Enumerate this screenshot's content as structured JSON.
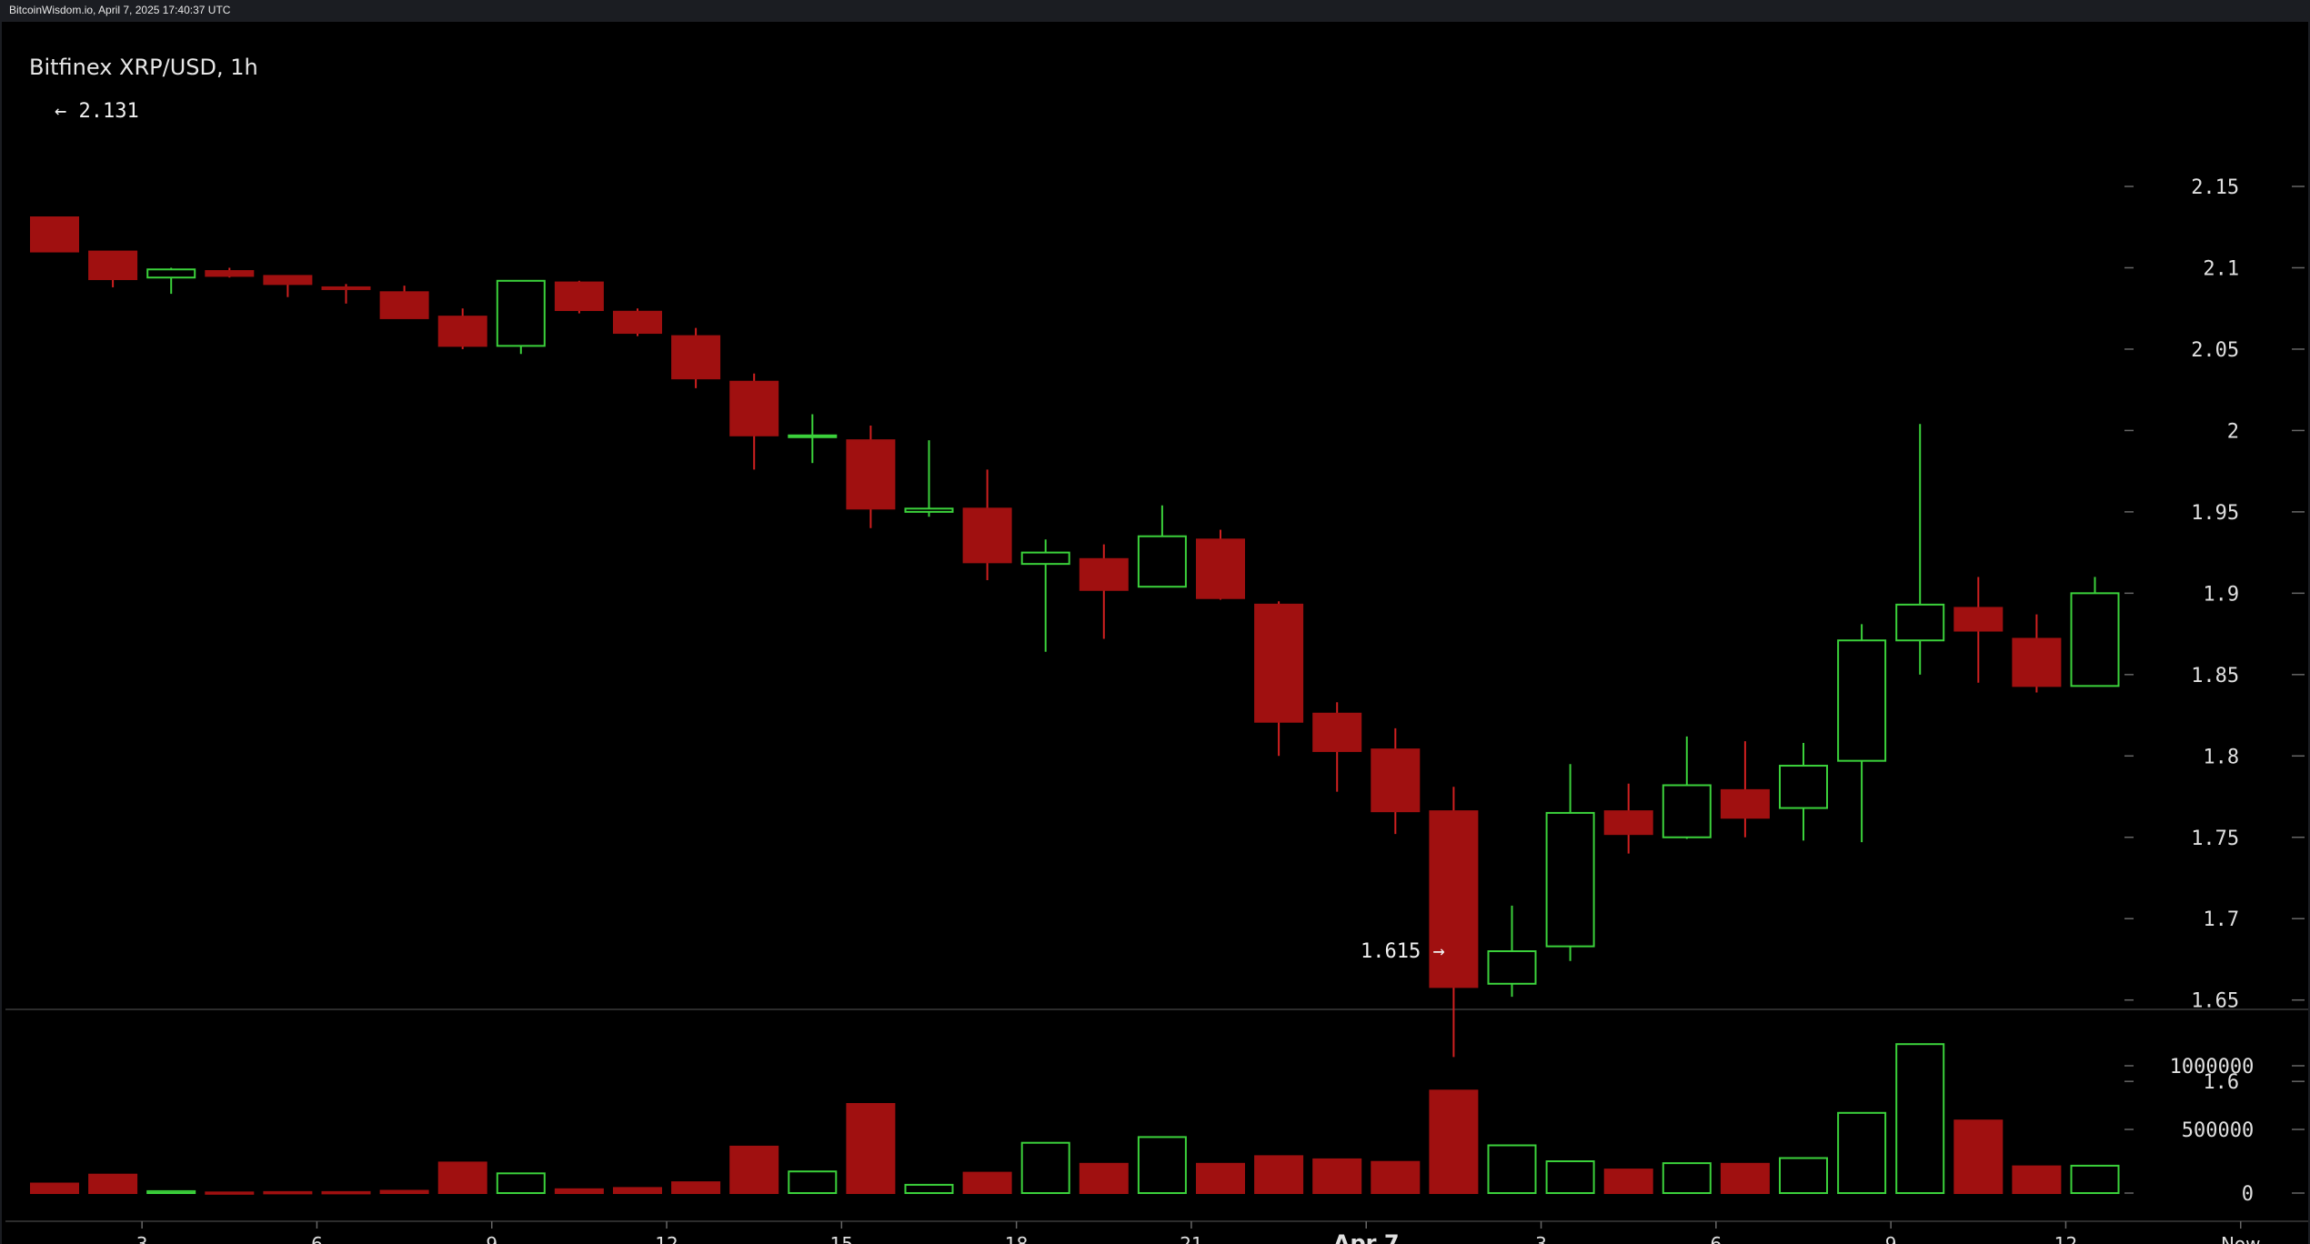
{
  "header": {
    "watermark": "BitcoinWisdom.io, April 7, 2025 17:40:37 UTC"
  },
  "chart_data": {
    "type": "candlestick",
    "title": "Bitfinex XRP/USD, 1h",
    "colors": {
      "up": "#3bd13b",
      "down": "#a01010",
      "down_wick": "#d02020",
      "axis_text": "#e0e0e0"
    },
    "price_axis": {
      "ylim": [
        1.575,
        2.19
      ],
      "ticks": [
        2.15,
        2.1,
        2.05,
        2,
        1.95,
        1.9,
        1.85,
        1.8,
        1.75,
        1.7,
        1.65,
        1.6
      ],
      "tick_labels": [
        "2.15",
        "2.1",
        "2.05",
        "2",
        "1.95",
        "1.9",
        "1.85",
        "1.8",
        "1.75",
        "1.7",
        "1.65",
        "1.6"
      ]
    },
    "volume_axis": {
      "ylim": [
        0,
        1450000
      ],
      "ticks": [
        1000000,
        500000,
        0
      ],
      "tick_labels": [
        "1000000",
        "500000",
        "0"
      ]
    },
    "x_axis": {
      "tick_labels": [
        "3",
        "6",
        "9",
        "12",
        "15",
        "18",
        "21",
        "Apr 7",
        "3",
        "6",
        "9",
        "12",
        "Now"
      ],
      "tick_positions": [
        1.5,
        4.5,
        7.5,
        10.5,
        13.5,
        16.5,
        19.5,
        22.5,
        25.5,
        28.5,
        31.5,
        34.5,
        37.5
      ]
    },
    "candles": [
      {
        "o": 2.131,
        "h": 2.131,
        "l": 2.11,
        "c": 2.11,
        "v": 75000
      },
      {
        "o": 2.11,
        "h": 2.11,
        "l": 2.088,
        "c": 2.093,
        "v": 145000
      },
      {
        "o": 2.094,
        "h": 2.1,
        "l": 2.084,
        "c": 2.099,
        "v": 15000
      },
      {
        "o": 2.098,
        "h": 2.1,
        "l": 2.094,
        "c": 2.095,
        "v": 5000
      },
      {
        "o": 2.095,
        "h": 2.095,
        "l": 2.082,
        "c": 2.09,
        "v": 8000
      },
      {
        "o": 2.088,
        "h": 2.09,
        "l": 2.078,
        "c": 2.087,
        "v": 8000
      },
      {
        "o": 2.085,
        "h": 2.089,
        "l": 2.069,
        "c": 2.069,
        "v": 18000
      },
      {
        "o": 2.07,
        "h": 2.075,
        "l": 2.05,
        "c": 2.052,
        "v": 240000
      },
      {
        "o": 2.052,
        "h": 2.092,
        "l": 2.047,
        "c": 2.092,
        "v": 155000
      },
      {
        "o": 2.091,
        "h": 2.092,
        "l": 2.072,
        "c": 2.074,
        "v": 30000
      },
      {
        "o": 2.073,
        "h": 2.075,
        "l": 2.058,
        "c": 2.06,
        "v": 40000
      },
      {
        "o": 2.058,
        "h": 2.063,
        "l": 2.026,
        "c": 2.032,
        "v": 85000
      },
      {
        "o": 2.03,
        "h": 2.035,
        "l": 1.976,
        "c": 1.997,
        "v": 365000
      },
      {
        "o": 1.996,
        "h": 2.01,
        "l": 1.98,
        "c": 1.997,
        "v": 170000
      },
      {
        "o": 1.994,
        "h": 2.003,
        "l": 1.94,
        "c": 1.952,
        "v": 700000
      },
      {
        "o": 1.95,
        "h": 1.994,
        "l": 1.947,
        "c": 1.952,
        "v": 65000
      },
      {
        "o": 1.952,
        "h": 1.976,
        "l": 1.908,
        "c": 1.919,
        "v": 160000
      },
      {
        "o": 1.918,
        "h": 1.933,
        "l": 1.864,
        "c": 1.925,
        "v": 395000
      },
      {
        "o": 1.921,
        "h": 1.93,
        "l": 1.872,
        "c": 1.902,
        "v": 230000
      },
      {
        "o": 1.904,
        "h": 1.954,
        "l": 1.904,
        "c": 1.935,
        "v": 440000
      },
      {
        "o": 1.933,
        "h": 1.939,
        "l": 1.896,
        "c": 1.897,
        "v": 230000
      },
      {
        "o": 1.893,
        "h": 1.895,
        "l": 1.8,
        "c": 1.821,
        "v": 290000
      },
      {
        "o": 1.826,
        "h": 1.833,
        "l": 1.778,
        "c": 1.803,
        "v": 265000
      },
      {
        "o": 1.804,
        "h": 1.817,
        "l": 1.752,
        "c": 1.766,
        "v": 245000
      },
      {
        "o": 1.766,
        "h": 1.781,
        "l": 1.615,
        "c": 1.658,
        "v": 805000
      },
      {
        "o": 1.66,
        "h": 1.708,
        "l": 1.652,
        "c": 1.68,
        "v": 375000
      },
      {
        "o": 1.683,
        "h": 1.795,
        "l": 1.674,
        "c": 1.765,
        "v": 250000
      },
      {
        "o": 1.766,
        "h": 1.783,
        "l": 1.74,
        "c": 1.752,
        "v": 185000
      },
      {
        "o": 1.75,
        "h": 1.812,
        "l": 1.749,
        "c": 1.782,
        "v": 235000
      },
      {
        "o": 1.779,
        "h": 1.809,
        "l": 1.75,
        "c": 1.762,
        "v": 230000
      },
      {
        "o": 1.768,
        "h": 1.808,
        "l": 1.748,
        "c": 1.794,
        "v": 275000
      },
      {
        "o": 1.797,
        "h": 1.881,
        "l": 1.747,
        "c": 1.871,
        "v": 630000
      },
      {
        "o": 1.871,
        "h": 2.004,
        "l": 1.85,
        "c": 1.893,
        "v": 1170000
      },
      {
        "o": 1.891,
        "h": 1.91,
        "l": 1.845,
        "c": 1.877,
        "v": 570000
      },
      {
        "o": 1.872,
        "h": 1.887,
        "l": 1.839,
        "c": 1.843,
        "v": 210000
      },
      {
        "o": 1.843,
        "h": 1.91,
        "l": 1.843,
        "c": 1.9,
        "v": 215000
      }
    ],
    "annotations": {
      "high": "← 2.131",
      "low": "1.615 →"
    }
  }
}
